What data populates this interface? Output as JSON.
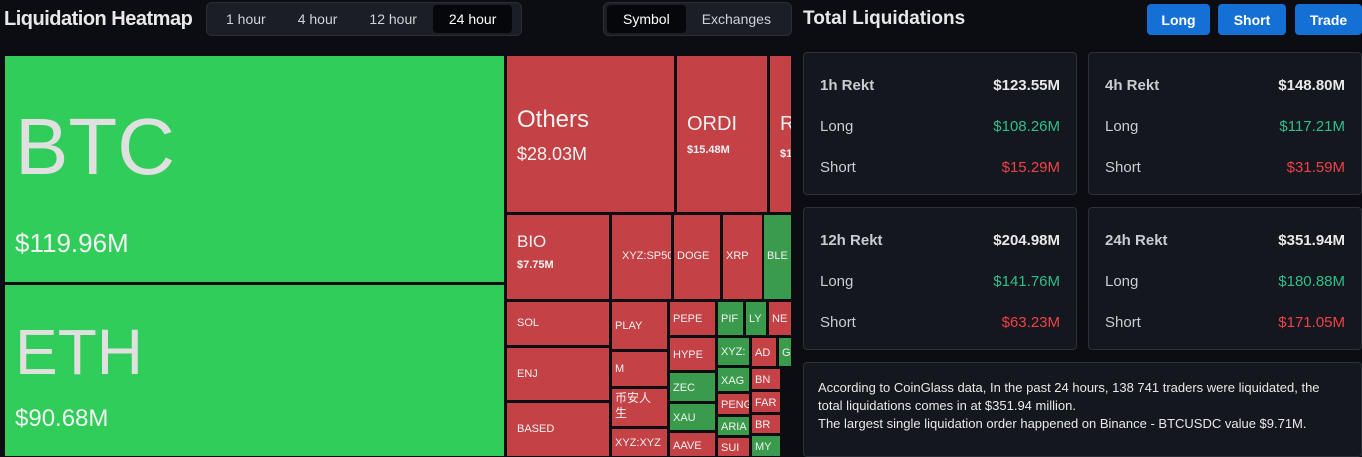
{
  "header": {
    "title": "Liquidation Heatmap",
    "time_tabs": [
      "1 hour",
      "4 hour",
      "12 hour",
      "24 hour"
    ],
    "view_tabs": [
      "Symbol",
      "Exchanges"
    ]
  },
  "heatmap": {
    "tiles": [
      {
        "label": "BTC",
        "value": "$119.96M"
      },
      {
        "label": "ETH",
        "value": "$90.68M"
      },
      {
        "label": "Others",
        "value": "$28.03M"
      },
      {
        "label": "ORDI",
        "value": "$15.48M"
      },
      {
        "label": "R",
        "value": "$1"
      },
      {
        "label": "BIO",
        "value": "$7.75M"
      },
      {
        "label": "XYZ:SP50"
      },
      {
        "label": "DOGE"
      },
      {
        "label": "XRP"
      },
      {
        "label": "BLE"
      },
      {
        "label": "SOL"
      },
      {
        "label": "ENJ"
      },
      {
        "label": "BASED"
      },
      {
        "label": "PLAY"
      },
      {
        "label": "M"
      },
      {
        "label": "币安人生"
      },
      {
        "label": "XYZ:XYZ"
      },
      {
        "label": "PEPE"
      },
      {
        "label": "HYPE"
      },
      {
        "label": "ZEC"
      },
      {
        "label": "XAU"
      },
      {
        "label": "AAVE"
      },
      {
        "label": "PIF"
      },
      {
        "label": "LY"
      },
      {
        "label": "NE"
      },
      {
        "label": "XYZ:"
      },
      {
        "label": "XAG"
      },
      {
        "label": "PENG"
      },
      {
        "label": "ARIA"
      },
      {
        "label": "SUI"
      },
      {
        "label": "AD"
      },
      {
        "label": "G"
      },
      {
        "label": "BN"
      },
      {
        "label": "FAR"
      },
      {
        "label": "BR"
      },
      {
        "label": "MY"
      }
    ]
  },
  "panel": {
    "title": "Total Liquidations",
    "buttons": [
      "Long",
      "Short",
      "Trade"
    ],
    "cards": [
      {
        "title": "1h Rekt",
        "total": "$123.55M",
        "long_label": "Long",
        "long": "$108.26M",
        "short_label": "Short",
        "short": "$15.29M"
      },
      {
        "title": "4h Rekt",
        "total": "$148.80M",
        "long_label": "Long",
        "long": "$117.21M",
        "short_label": "Short",
        "short": "$31.59M"
      },
      {
        "title": "12h Rekt",
        "total": "$204.98M",
        "long_label": "Long",
        "long": "$141.76M",
        "short_label": "Short",
        "short": "$63.23M"
      },
      {
        "title": "24h Rekt",
        "total": "$351.94M",
        "long_label": "Long",
        "long": "$180.88M",
        "short_label": "Short",
        "short": "$171.05M"
      }
    ],
    "summary": [
      "According to CoinGlass data, In the past 24 hours, 138 741 traders were liquidated, the total liquidations comes in at $351.94 million.",
      "The largest single liquidation order happened on Binance - BTCUSDC value $9.71M."
    ]
  }
}
